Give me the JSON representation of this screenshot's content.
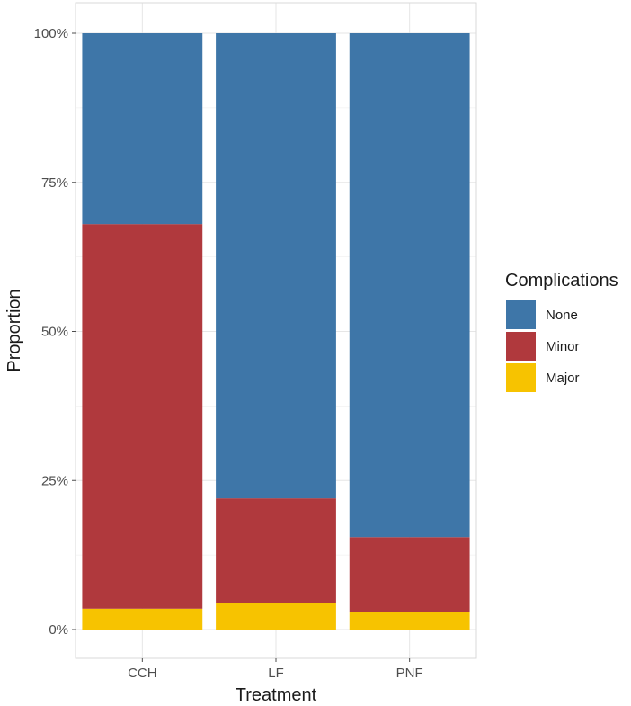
{
  "chart_data": {
    "type": "bar",
    "stacked": true,
    "title": "",
    "xlabel": "Treatment",
    "ylabel": "Proportion",
    "categories": [
      "CCH",
      "LF",
      "PNF"
    ],
    "series": [
      {
        "name": "None",
        "color": "#3e76a8",
        "values": [
          0.32,
          0.78,
          0.845
        ]
      },
      {
        "name": "Minor",
        "color": "#b0393d",
        "values": [
          0.645,
          0.175,
          0.125
        ]
      },
      {
        "name": "Major",
        "color": "#f7c300",
        "values": [
          0.035,
          0.045,
          0.03
        ]
      }
    ],
    "stack_order_bottom_to_top": [
      "Major",
      "Minor",
      "None"
    ],
    "ylim": [
      0,
      1
    ],
    "yticks": [
      {
        "value": 0,
        "label": "0%"
      },
      {
        "value": 0.25,
        "label": "25%"
      },
      {
        "value": 0.5,
        "label": "50%"
      },
      {
        "value": 0.75,
        "label": "75%"
      },
      {
        "value": 1,
        "label": "100%"
      }
    ],
    "grid": true,
    "legend": {
      "title": "Complications",
      "placement": "right",
      "entries": [
        "None",
        "Minor",
        "Major"
      ]
    },
    "panel_border": true,
    "background": "#ffffff"
  }
}
